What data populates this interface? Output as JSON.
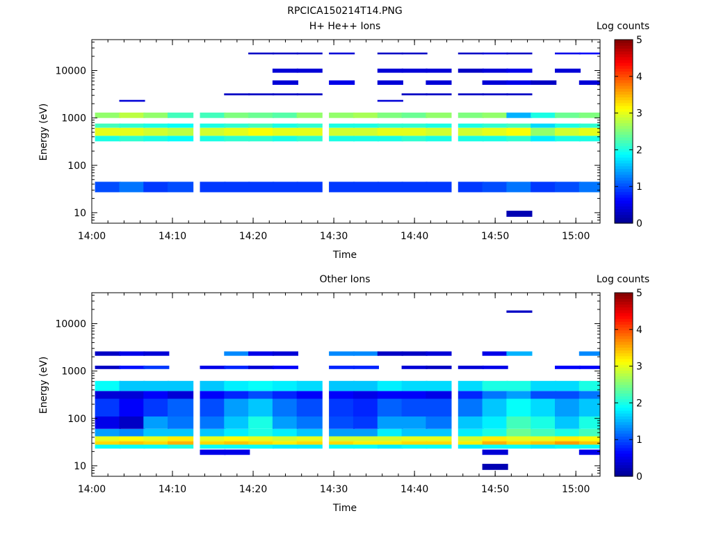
{
  "figure_title": "RPCICA150214T14.PNG",
  "colors": {
    "colormap": [
      "#00008f",
      "#0000ff",
      "#007fff",
      "#00ffff",
      "#7fff7f",
      "#ffff00",
      "#ff7f00",
      "#ff0000",
      "#7f0000"
    ],
    "background": "#ffffff"
  },
  "chart_data": [
    {
      "type": "heatmap",
      "title": "H+ He++ Ions",
      "xlabel": "Time",
      "ylabel": "Energy (eV)",
      "colorbar_label": "Log counts",
      "y_scale": "log",
      "ylim": [
        6,
        45000
      ],
      "xlim": [
        "14:00",
        "15:03"
      ],
      "x_ticks": [
        "14:00",
        "14:10",
        "14:20",
        "14:30",
        "14:40",
        "14:50",
        "15:00"
      ],
      "y_ticks": [
        "10",
        "100",
        "1000",
        "10000"
      ],
      "colorbar_ticks": [
        "0",
        "1",
        "2",
        "3",
        "4",
        "5"
      ],
      "colorbar_range": [
        0,
        5
      ],
      "time_columns": [
        "14:02",
        "14:05",
        "14:08",
        "14:11",
        "14:15",
        "14:18",
        "14:21",
        "14:24",
        "14:27",
        "14:31",
        "14:34",
        "14:37",
        "14:40",
        "14:43",
        "14:47",
        "14:50",
        "14:53",
        "14:56",
        "14:59",
        "15:02"
      ],
      "bands": [
        {
          "e_lo": 27,
          "e_hi": 45,
          "values": [
            1.0,
            1.2,
            0.9,
            1.0,
            0.9,
            0.9,
            0.9,
            0.9,
            0.9,
            0.9,
            0.9,
            0.9,
            0.9,
            0.9,
            0.9,
            1.0,
            1.2,
            0.9,
            1.0,
            1.2
          ]
        },
        {
          "e_lo": 320,
          "e_hi": 420,
          "values": [
            2.0,
            2.1,
            2.0,
            1.9,
            2.0,
            2.1,
            2.1,
            2.0,
            2.1,
            2.0,
            2.0,
            2.0,
            2.1,
            2.0,
            2.0,
            2.0,
            2.1,
            1.8,
            2.0,
            2.0
          ]
        },
        {
          "e_lo": 420,
          "e_hi": 620,
          "values": [
            3.0,
            3.0,
            2.9,
            2.8,
            2.9,
            3.0,
            3.1,
            3.0,
            3.0,
            2.9,
            2.9,
            3.0,
            3.0,
            2.9,
            2.9,
            3.0,
            3.1,
            2.6,
            2.9,
            3.0
          ]
        },
        {
          "e_lo": 620,
          "e_hi": 760,
          "values": [
            2.2,
            2.1,
            2.0,
            1.9,
            2.0,
            2.1,
            2.2,
            2.0,
            2.1,
            2.0,
            2.0,
            2.1,
            2.1,
            2.0,
            2.0,
            2.1,
            2.2,
            1.7,
            2.0,
            2.1
          ]
        },
        {
          "e_lo": 1000,
          "e_hi": 1300,
          "values": [
            2.6,
            2.8,
            2.6,
            2.2,
            2.2,
            2.5,
            2.4,
            2.3,
            2.6,
            2.6,
            2.7,
            2.5,
            2.4,
            2.6,
            2.5,
            2.6,
            1.5,
            2.0,
            2.4,
            2.5
          ]
        },
        {
          "e_lo": 2200,
          "e_hi": 2400,
          "values": [
            null,
            0.4,
            null,
            null,
            null,
            null,
            null,
            null,
            null,
            null,
            null,
            0.4,
            null,
            null,
            null,
            null,
            null,
            null,
            null,
            null
          ]
        },
        {
          "e_lo": 3000,
          "e_hi": 3300,
          "values": [
            null,
            null,
            null,
            null,
            null,
            0.3,
            0.3,
            0.3,
            0.3,
            null,
            null,
            null,
            0.3,
            0.3,
            0.3,
            0.3,
            0.3,
            null,
            null,
            null
          ]
        },
        {
          "e_lo": 5000,
          "e_hi": 6200,
          "values": [
            null,
            null,
            null,
            null,
            null,
            null,
            null,
            0.4,
            null,
            0.5,
            null,
            0.4,
            null,
            0.4,
            null,
            0.4,
            0.5,
            0.3,
            null,
            0.4
          ]
        },
        {
          "e_lo": 9000,
          "e_hi": 11000,
          "values": [
            null,
            null,
            null,
            null,
            null,
            null,
            null,
            0.4,
            0.4,
            null,
            null,
            0.4,
            0.4,
            0.4,
            0.3,
            0.4,
            0.5,
            null,
            0.4,
            null
          ]
        },
        {
          "e_lo": 22000,
          "e_hi": 24000,
          "values": [
            null,
            null,
            null,
            null,
            null,
            null,
            0.3,
            0.3,
            0.3,
            0.4,
            null,
            0.3,
            0.3,
            null,
            0.3,
            0.4,
            0.3,
            null,
            0.5,
            0.6
          ]
        },
        {
          "e_lo": 8.2,
          "e_hi": 11,
          "values": [
            null,
            null,
            null,
            null,
            null,
            null,
            null,
            null,
            null,
            null,
            null,
            null,
            null,
            null,
            null,
            null,
            0.2,
            null,
            null,
            null
          ]
        }
      ]
    },
    {
      "type": "heatmap",
      "title": "Other Ions",
      "xlabel": "Time",
      "ylabel": "Energy (eV)",
      "colorbar_label": "Log counts",
      "y_scale": "log",
      "ylim": [
        6,
        45000
      ],
      "xlim": [
        "14:00",
        "15:03"
      ],
      "x_ticks": [
        "14:00",
        "14:10",
        "14:20",
        "14:30",
        "14:40",
        "14:50",
        "15:00"
      ],
      "y_ticks": [
        "10",
        "100",
        "1000",
        "10000"
      ],
      "colorbar_ticks": [
        "0",
        "1",
        "2",
        "3",
        "4",
        "5"
      ],
      "colorbar_range": [
        0,
        5
      ],
      "time_columns": [
        "14:02",
        "14:05",
        "14:08",
        "14:11",
        "14:15",
        "14:18",
        "14:21",
        "14:24",
        "14:27",
        "14:31",
        "14:34",
        "14:37",
        "14:40",
        "14:43",
        "14:47",
        "14:50",
        "14:53",
        "14:56",
        "14:59",
        "15:02"
      ],
      "bands": [
        {
          "e_lo": 23,
          "e_hi": 28,
          "values": [
            1.9,
            1.9,
            1.9,
            2.0,
            1.9,
            1.9,
            1.9,
            1.8,
            1.8,
            1.9,
            1.9,
            1.8,
            1.9,
            1.9,
            1.8,
            1.9,
            1.9,
            1.8,
            1.9,
            1.9
          ]
        },
        {
          "e_lo": 28,
          "e_hi": 33,
          "values": [
            3.3,
            3.4,
            3.3,
            3.5,
            3.3,
            3.4,
            3.3,
            3.2,
            3.3,
            3.3,
            3.2,
            3.2,
            3.3,
            3.3,
            3.2,
            3.5,
            3.3,
            3.4,
            3.6,
            3.4
          ]
        },
        {
          "e_lo": 33,
          "e_hi": 42,
          "values": [
            3.0,
            3.1,
            3.0,
            3.2,
            3.0,
            3.1,
            3.0,
            2.9,
            3.0,
            2.9,
            2.9,
            2.9,
            3.0,
            3.0,
            2.9,
            3.2,
            3.0,
            3.0,
            3.2,
            3.1
          ]
        },
        {
          "e_lo": 42,
          "e_hi": 60,
          "values": [
            1.4,
            1.3,
            1.6,
            1.6,
            1.6,
            1.8,
            2.0,
            1.8,
            1.6,
            1.4,
            1.4,
            1.8,
            1.6,
            1.6,
            1.8,
            2.0,
            2.4,
            2.2,
            2.0,
            2.2
          ]
        },
        {
          "e_lo": 60,
          "e_hi": 110,
          "values": [
            0.5,
            0.3,
            1.4,
            1.2,
            1.2,
            1.6,
            2.0,
            1.4,
            1.2,
            1.0,
            0.9,
            1.4,
            1.4,
            1.2,
            1.6,
            1.8,
            2.2,
            2.0,
            1.6,
            2.0
          ]
        },
        {
          "e_lo": 110,
          "e_hi": 260,
          "values": [
            0.9,
            0.6,
            0.9,
            1.1,
            1.0,
            1.4,
            1.6,
            1.2,
            1.0,
            0.9,
            0.8,
            1.1,
            1.0,
            1.0,
            1.2,
            1.6,
            1.9,
            1.7,
            1.4,
            1.6
          ]
        },
        {
          "e_lo": 260,
          "e_hi": 380,
          "values": [
            0.4,
            0.4,
            0.6,
            0.4,
            0.6,
            0.8,
            1.0,
            0.8,
            0.6,
            0.6,
            0.5,
            0.6,
            0.6,
            0.5,
            0.8,
            1.2,
            1.4,
            1.0,
            1.0,
            1.2
          ]
        },
        {
          "e_lo": 380,
          "e_hi": 620,
          "values": [
            1.9,
            1.6,
            1.6,
            1.6,
            1.6,
            1.8,
            1.9,
            1.8,
            1.7,
            1.6,
            1.6,
            1.8,
            1.7,
            1.7,
            1.7,
            2.0,
            2.0,
            1.7,
            1.7,
            2.0
          ]
        },
        {
          "e_lo": 1100,
          "e_hi": 1300,
          "values": [
            0.3,
            0.7,
            0.9,
            null,
            0.5,
            0.8,
            0.4,
            0.6,
            null,
            0.8,
            0.8,
            null,
            0.4,
            0.3,
            0.4,
            0.5,
            null,
            null,
            0.6,
            0.6
          ]
        },
        {
          "e_lo": 2100,
          "e_hi": 2600,
          "values": [
            0.3,
            0.5,
            0.4,
            null,
            null,
            1.3,
            0.5,
            0.4,
            null,
            1.3,
            1.3,
            0.3,
            0.3,
            0.4,
            null,
            0.5,
            1.5,
            null,
            null,
            1.3
          ]
        },
        {
          "e_lo": 17000,
          "e_hi": 19000,
          "values": [
            null,
            null,
            null,
            null,
            null,
            null,
            null,
            null,
            null,
            null,
            null,
            null,
            null,
            null,
            null,
            null,
            0.3,
            null,
            null,
            null
          ]
        },
        {
          "e_lo": 8.2,
          "e_hi": 11,
          "values": [
            null,
            null,
            null,
            null,
            null,
            null,
            null,
            null,
            null,
            null,
            null,
            null,
            null,
            null,
            null,
            0.2,
            null,
            null,
            null,
            null
          ]
        },
        {
          "e_lo": 17,
          "e_hi": 22,
          "values": [
            null,
            null,
            null,
            null,
            0.5,
            0.5,
            null,
            null,
            null,
            null,
            null,
            null,
            null,
            null,
            null,
            0.4,
            null,
            null,
            null,
            0.5
          ]
        }
      ]
    }
  ]
}
